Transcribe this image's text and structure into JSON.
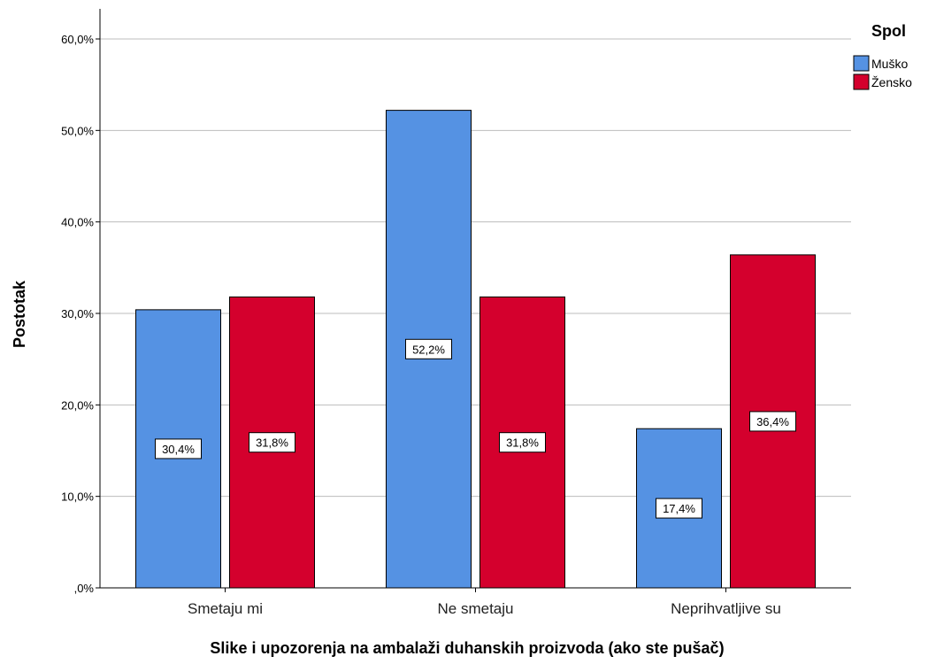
{
  "chart_data": {
    "type": "bar",
    "title": "",
    "xlabel": "Slike i upozorenja na ambalaži duhanskih proizvoda (ako ste pušač)",
    "ylabel": "Postotak",
    "ylim": [
      0,
      60
    ],
    "yticks": [
      0,
      10,
      20,
      30,
      40,
      50,
      60
    ],
    "ytick_labels": [
      ",0%",
      "10,0%",
      "20,0%",
      "30,0%",
      "40,0%",
      "50,0%",
      "60,0%"
    ],
    "categories": [
      "Smetaju mi",
      "Ne smetaju",
      "Neprihvatljive su"
    ],
    "series": [
      {
        "name": "Muško",
        "color": "#5592e3",
        "values": [
          30.4,
          52.2,
          17.4
        ],
        "labels": [
          "30,4%",
          "52,2%",
          "17,4%"
        ]
      },
      {
        "name": "Žensko",
        "color": "#d4002d",
        "values": [
          31.8,
          31.8,
          36.4
        ],
        "labels": [
          "31,8%",
          "31,8%",
          "36,4%"
        ]
      }
    ],
    "legend": {
      "title": "Spol",
      "position": "top-right"
    },
    "grid": true
  }
}
